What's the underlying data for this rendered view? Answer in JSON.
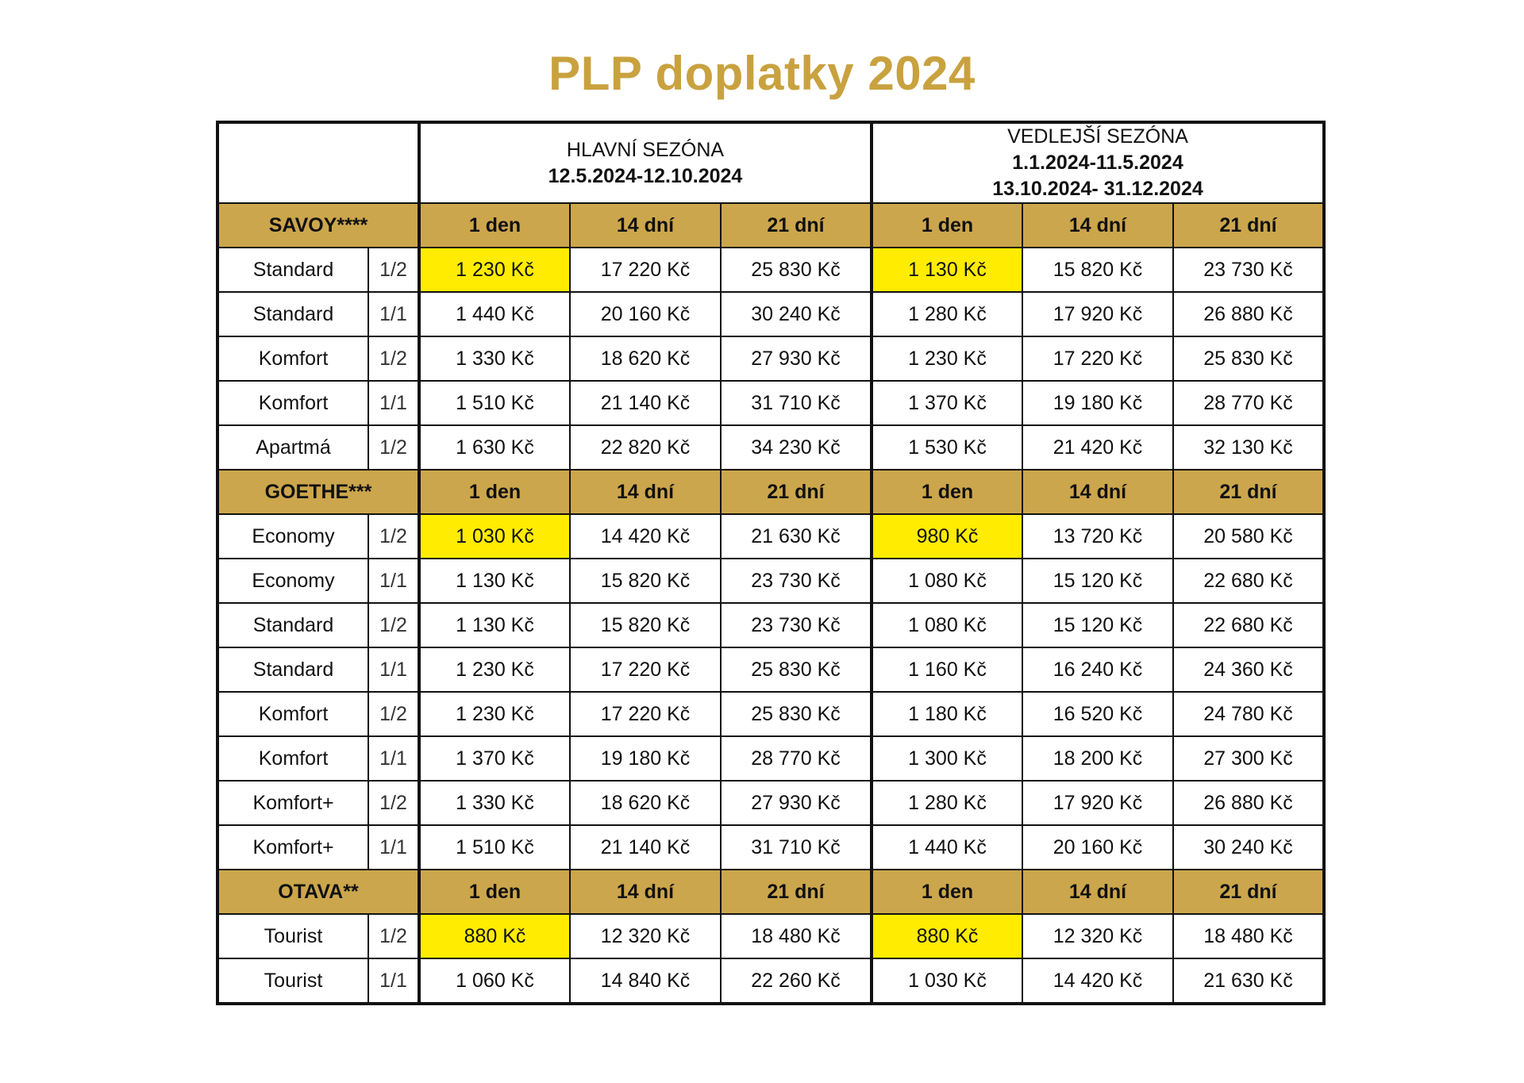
{
  "title": "PLP doplatky 2024",
  "colors": {
    "title": "#c9a23f",
    "hotel_header": "#cca64c",
    "highlight": "#ffec00"
  },
  "seasons": {
    "main": {
      "name": "HLAVNÍ SEZÓNA",
      "dates": [
        "12.5.2024-12.10.2024"
      ]
    },
    "off": {
      "name": "VEDLEJŠÍ SEZÓNA",
      "dates": [
        "1.1.2024-11.5.2024",
        "13.10.2024- 31.12.2024"
      ]
    }
  },
  "columns": [
    "1 den",
    "14 dní",
    "21 dní",
    "1 den",
    "14 dní",
    "21 dní"
  ],
  "hotels": [
    {
      "name": "SAVOY****",
      "rooms": [
        {
          "room": "Standard",
          "occupancy": "1/2",
          "prices": [
            "1 230 Kč",
            "17 220 Kč",
            "25 830 Kč",
            "1 130 Kč",
            "15 820 Kč",
            "23 730 Kč"
          ],
          "highlight": true
        },
        {
          "room": "Standard",
          "occupancy": "1/1",
          "prices": [
            "1 440 Kč",
            "20 160 Kč",
            "30 240 Kč",
            "1 280 Kč",
            "17 920 Kč",
            "26 880 Kč"
          ],
          "highlight": false
        },
        {
          "room": "Komfort",
          "occupancy": "1/2",
          "prices": [
            "1 330 Kč",
            "18 620 Kč",
            "27 930 Kč",
            "1 230 Kč",
            "17 220 Kč",
            "25 830 Kč"
          ],
          "highlight": false
        },
        {
          "room": "Komfort",
          "occupancy": "1/1",
          "prices": [
            "1 510 Kč",
            "21 140 Kč",
            "31 710 Kč",
            "1 370 Kč",
            "19 180 Kč",
            "28 770 Kč"
          ],
          "highlight": false
        },
        {
          "room": "Apartmá",
          "occupancy": "1/2",
          "prices": [
            "1 630 Kč",
            "22 820 Kč",
            "34 230 Kč",
            "1 530 Kč",
            "21 420 Kč",
            "32 130 Kč"
          ],
          "highlight": false
        }
      ]
    },
    {
      "name": "GOETHE***",
      "rooms": [
        {
          "room": "Economy",
          "occupancy": "1/2",
          "prices": [
            "1 030 Kč",
            "14 420 Kč",
            "21 630 Kč",
            "980 Kč",
            "13 720 Kč",
            "20 580 Kč"
          ],
          "highlight": true
        },
        {
          "room": "Economy",
          "occupancy": "1/1",
          "prices": [
            "1 130 Kč",
            "15 820 Kč",
            "23 730 Kč",
            "1 080 Kč",
            "15 120 Kč",
            "22 680 Kč"
          ],
          "highlight": false
        },
        {
          "room": "Standard",
          "occupancy": "1/2",
          "prices": [
            "1 130 Kč",
            "15 820 Kč",
            "23 730 Kč",
            "1 080 Kč",
            "15 120 Kč",
            "22 680 Kč"
          ],
          "highlight": false
        },
        {
          "room": "Standard",
          "occupancy": "1/1",
          "prices": [
            "1 230 Kč",
            "17 220 Kč",
            "25 830 Kč",
            "1 160 Kč",
            "16 240 Kč",
            "24 360 Kč"
          ],
          "highlight": false
        },
        {
          "room": "Komfort",
          "occupancy": "1/2",
          "prices": [
            "1 230 Kč",
            "17 220 Kč",
            "25 830 Kč",
            "1 180 Kč",
            "16 520 Kč",
            "24 780 Kč"
          ],
          "highlight": false
        },
        {
          "room": "Komfort",
          "occupancy": "1/1",
          "prices": [
            "1 370 Kč",
            "19 180 Kč",
            "28 770 Kč",
            "1 300 Kč",
            "18 200 Kč",
            "27 300 Kč"
          ],
          "highlight": false
        },
        {
          "room": "Komfort+",
          "occupancy": "1/2",
          "prices": [
            "1 330 Kč",
            "18 620 Kč",
            "27 930 Kč",
            "1 280 Kč",
            "17 920 Kč",
            "26 880 Kč"
          ],
          "highlight": false
        },
        {
          "room": "Komfort+",
          "occupancy": "1/1",
          "prices": [
            "1 510 Kč",
            "21 140 Kč",
            "31 710 Kč",
            "1 440 Kč",
            "20 160 Kč",
            "30 240 Kč"
          ],
          "highlight": false
        }
      ]
    },
    {
      "name": "OTAVA**",
      "rooms": [
        {
          "room": "Tourist",
          "occupancy": "1/2",
          "prices": [
            "880 Kč",
            "12 320 Kč",
            "18 480 Kč",
            "880 Kč",
            "12 320 Kč",
            "18 480 Kč"
          ],
          "highlight": true
        },
        {
          "room": "Tourist",
          "occupancy": "1/1",
          "prices": [
            "1 060 Kč",
            "14 840 Kč",
            "22 260 Kč",
            "1 030 Kč",
            "14 420 Kč",
            "21 630 Kč"
          ],
          "highlight": false
        }
      ]
    }
  ]
}
